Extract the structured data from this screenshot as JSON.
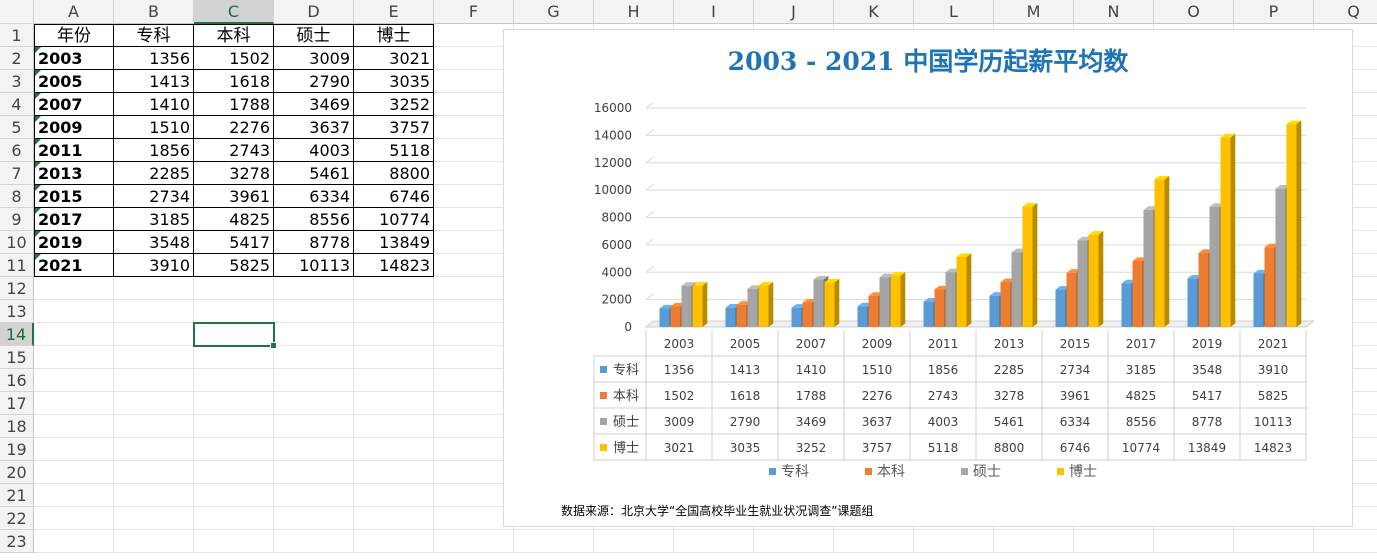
{
  "sheet": {
    "columns": [
      "A",
      "B",
      "C",
      "D",
      "E",
      "F",
      "G",
      "H",
      "I",
      "J",
      "K",
      "L",
      "M",
      "N",
      "O",
      "P",
      "Q"
    ],
    "rows": [
      "1",
      "2",
      "3",
      "4",
      "5",
      "6",
      "7",
      "8",
      "9",
      "10",
      "11",
      "12",
      "13",
      "14",
      "15",
      "16",
      "17",
      "18",
      "19",
      "20",
      "21",
      "22",
      "23"
    ],
    "selected_column": "C",
    "selected_row": "14",
    "table": {
      "headers": [
        "年份",
        "专科",
        "本科",
        "硕士",
        "博士"
      ],
      "rows": [
        [
          "2003",
          "1356",
          "1502",
          "3009",
          "3021"
        ],
        [
          "2005",
          "1413",
          "1618",
          "2790",
          "3035"
        ],
        [
          "2007",
          "1410",
          "1788",
          "3469",
          "3252"
        ],
        [
          "2009",
          "1510",
          "2276",
          "3637",
          "3757"
        ],
        [
          "2011",
          "1856",
          "2743",
          "4003",
          "5118"
        ],
        [
          "2013",
          "2285",
          "3278",
          "5461",
          "8800"
        ],
        [
          "2015",
          "2734",
          "3961",
          "6334",
          "6746"
        ],
        [
          "2017",
          "3185",
          "4825",
          "8556",
          "10774"
        ],
        [
          "2019",
          "3548",
          "5417",
          "8778",
          "13849"
        ],
        [
          "2021",
          "3910",
          "5825",
          "10113",
          "14823"
        ]
      ]
    }
  },
  "chart": {
    "source_note": "数据来源：北京大学“全国高校毕业生就业状况调查”课题组"
  },
  "chart_data": {
    "type": "bar",
    "title": "2003 - 2021 中国学历起薪平均数",
    "categories": [
      "2003",
      "2005",
      "2007",
      "2009",
      "2011",
      "2013",
      "2015",
      "2017",
      "2019",
      "2021"
    ],
    "series": [
      {
        "name": "专科",
        "color": "#5b9bd5",
        "values": [
          1356,
          1413,
          1410,
          1510,
          1856,
          2285,
          2734,
          3185,
          3548,
          3910
        ]
      },
      {
        "name": "本科",
        "color": "#ed7d31",
        "values": [
          1502,
          1618,
          1788,
          2276,
          2743,
          3278,
          3961,
          4825,
          5417,
          5825
        ]
      },
      {
        "name": "硕士",
        "color": "#a5a5a5",
        "values": [
          3009,
          2790,
          3469,
          3637,
          4003,
          5461,
          6334,
          8556,
          8778,
          10113
        ]
      },
      {
        "name": "博士",
        "color": "#ffc000",
        "values": [
          3021,
          3035,
          3252,
          3757,
          5118,
          8800,
          6746,
          10774,
          13849,
          14823
        ]
      }
    ],
    "y_ticks": [
      "0",
      "2000",
      "4000",
      "6000",
      "8000",
      "10000",
      "12000",
      "14000",
      "16000"
    ],
    "ylim": [
      0,
      16000
    ],
    "grid": true,
    "legend": "bottom",
    "data_table": true
  }
}
